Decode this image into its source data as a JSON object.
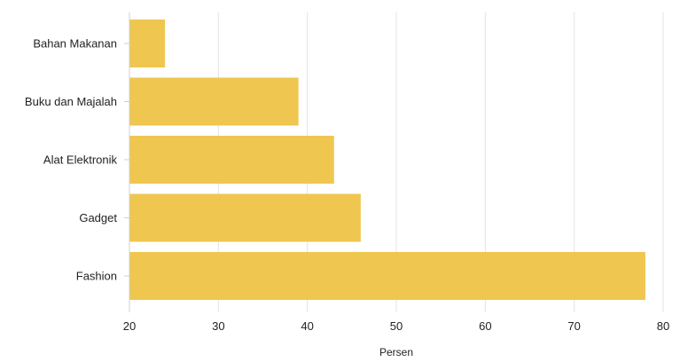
{
  "chart_data": {
    "type": "bar",
    "orientation": "horizontal",
    "categories": [
      "Bahan Makanan",
      "Buku dan Majalah",
      "Alat Elektronik",
      "Gadget",
      "Fashion"
    ],
    "values": [
      24,
      39,
      43,
      46,
      78
    ],
    "title": "",
    "xlabel": "Persen",
    "ylabel": "",
    "xlim": [
      20,
      80
    ],
    "xticks": [
      20,
      30,
      40,
      50,
      60,
      70,
      80
    ],
    "xtick_labels": [
      "20",
      "30",
      "40",
      "50",
      "60",
      "70",
      "80"
    ],
    "grid": "vertical",
    "legend": "none",
    "bar_color": "#efc650",
    "grid_color": "#e3e3e3",
    "axis_color": "#d0d0d0"
  }
}
